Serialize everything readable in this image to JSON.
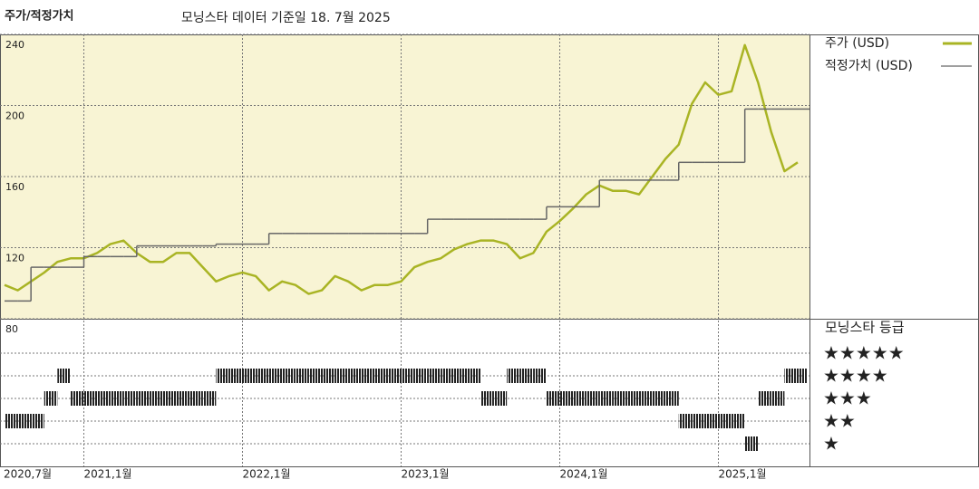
{
  "chart_data": {
    "type": "line",
    "title": "주가/적정가치",
    "subtitle": "모닝스타 데이터 기준일 18. 7월 2025",
    "x": [
      "2020-07",
      "2020-08",
      "2020-09",
      "2020-10",
      "2020-11",
      "2020-12",
      "2021-01",
      "2021-02",
      "2021-03",
      "2021-04",
      "2021-05",
      "2021-06",
      "2021-07",
      "2021-08",
      "2021-09",
      "2021-10",
      "2021-11",
      "2021-12",
      "2022-01",
      "2022-02",
      "2022-03",
      "2022-04",
      "2022-05",
      "2022-06",
      "2022-07",
      "2022-08",
      "2022-09",
      "2022-10",
      "2022-11",
      "2022-12",
      "2023-01",
      "2023-02",
      "2023-03",
      "2023-04",
      "2023-05",
      "2023-06",
      "2023-07",
      "2023-08",
      "2023-09",
      "2023-10",
      "2023-11",
      "2023-12",
      "2024-01",
      "2024-02",
      "2024-03",
      "2024-04",
      "2024-05",
      "2024-06",
      "2024-07",
      "2024-08",
      "2024-09",
      "2024-10",
      "2024-11",
      "2024-12",
      "2025-01",
      "2025-02",
      "2025-03",
      "2025-04",
      "2025-05",
      "2025-06",
      "2025-07"
    ],
    "series": [
      {
        "name": "주가 (USD)",
        "color": "#a9b424",
        "values": [
          99,
          96,
          101,
          106,
          112,
          114,
          114,
          117,
          122,
          124,
          117,
          112,
          112,
          117,
          117,
          109,
          101,
          104,
          106,
          104,
          96,
          101,
          99,
          94,
          96,
          104,
          101,
          96,
          99,
          99,
          101,
          109,
          112,
          114,
          119,
          122,
          124,
          124,
          122,
          114,
          117,
          129,
          135,
          142,
          150,
          155,
          152,
          152,
          150,
          160,
          170,
          178,
          201,
          213,
          206,
          208,
          234,
          213,
          185,
          163,
          168
        ]
      },
      {
        "name": "적정가치 (USD)",
        "color": "#666666",
        "step": "after",
        "values": [
          90,
          90,
          109,
          109,
          109,
          109,
          115,
          115,
          115,
          115,
          121,
          121,
          121,
          121,
          121,
          121,
          122,
          122,
          122,
          122,
          128,
          128,
          128,
          128,
          128,
          128,
          128,
          128,
          128,
          128,
          128,
          128,
          136,
          136,
          136,
          136,
          136,
          136,
          136,
          136,
          136,
          143,
          143,
          143,
          143,
          158,
          158,
          158,
          158,
          158,
          158,
          168,
          168,
          168,
          168,
          168,
          198,
          198,
          198,
          198,
          198
        ]
      }
    ],
    "ylim": [
      80,
      240
    ],
    "yticks": [
      80,
      120,
      160,
      200,
      240
    ],
    "xticks": [
      {
        "value": "2020-07",
        "label": "2020,7월"
      },
      {
        "value": "2021-01",
        "label": "2021,1월"
      },
      {
        "value": "2022-01",
        "label": "2022,1월"
      },
      {
        "value": "2023-01",
        "label": "2023,1월"
      },
      {
        "value": "2024-01",
        "label": "2024,1월"
      },
      {
        "value": "2025-01",
        "label": "2025,1월"
      }
    ],
    "grid": true,
    "rating": {
      "title": "모닝스타 등급",
      "labels": [
        "★★★★★",
        "★★★★",
        "★★★",
        "★★",
        "★"
      ],
      "values": [
        2,
        2,
        2,
        3,
        4,
        3,
        3,
        3,
        3,
        3,
        3,
        3,
        3,
        3,
        3,
        3,
        4,
        4,
        4,
        4,
        4,
        4,
        4,
        4,
        4,
        4,
        4,
        4,
        4,
        4,
        4,
        4,
        4,
        4,
        4,
        4,
        3,
        3,
        4,
        4,
        4,
        3,
        3,
        3,
        3,
        3,
        3,
        3,
        3,
        3,
        3,
        2,
        2,
        2,
        2,
        2,
        1,
        3,
        3,
        4,
        4
      ]
    }
  }
}
